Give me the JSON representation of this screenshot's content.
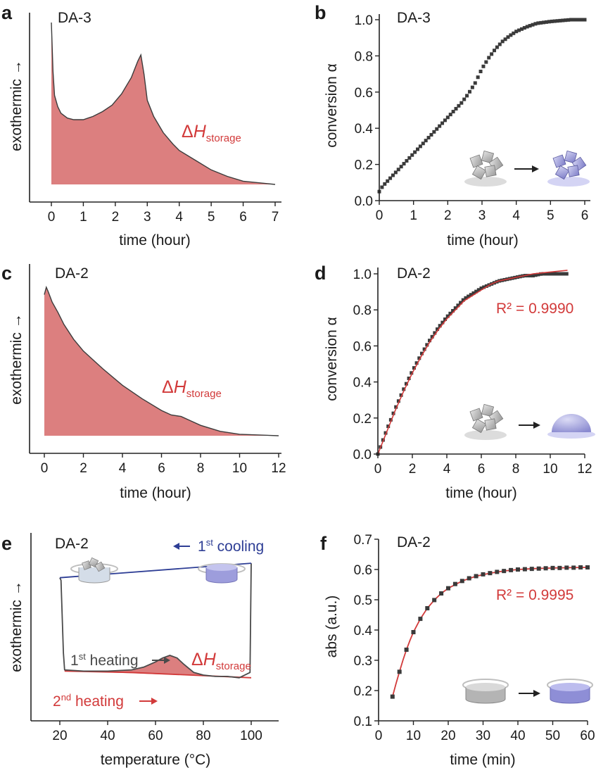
{
  "chart_data": [
    {
      "panel": "a",
      "type": "area",
      "title": "DA-3",
      "xlabel": "time (hour)",
      "ylabel": "exothermic →",
      "xlim": [
        -0.5,
        7
      ],
      "xticks": [
        0,
        1,
        2,
        3,
        4,
        5,
        6,
        7
      ],
      "yticks": [],
      "annotation": "ΔH_storage",
      "series": [
        {
          "x": [
            0,
            0.05,
            0.1,
            0.2,
            0.3,
            0.5,
            0.7,
            1.0,
            1.3,
            1.6,
            1.9,
            2.2,
            2.5,
            2.7,
            2.8,
            2.9,
            3.0,
            3.2,
            3.5,
            3.8,
            4.0,
            4.5,
            5.0,
            5.5,
            6.0,
            6.5,
            7.0
          ],
          "values": [
            1.0,
            0.7,
            0.55,
            0.48,
            0.44,
            0.41,
            0.4,
            0.4,
            0.42,
            0.45,
            0.49,
            0.56,
            0.66,
            0.76,
            0.8,
            0.68,
            0.52,
            0.42,
            0.32,
            0.25,
            0.21,
            0.15,
            0.09,
            0.05,
            0.02,
            0.01,
            0.0
          ]
        }
      ]
    },
    {
      "panel": "b",
      "type": "line",
      "title": "DA-3",
      "xlabel": "time (hour)",
      "ylabel": "conversion α",
      "xlim": [
        0,
        6
      ],
      "ylim": [
        0,
        1.0
      ],
      "xticks": [
        0,
        1,
        2,
        3,
        4,
        5,
        6
      ],
      "yticks": [
        0.0,
        0.2,
        0.4,
        0.6,
        0.8,
        1.0
      ],
      "series": [
        {
          "x": [
            0,
            0.1,
            0.2,
            0.4,
            0.6,
            0.8,
            1.0,
            1.2,
            1.4,
            1.6,
            1.8,
            2.0,
            2.2,
            2.4,
            2.6,
            2.8,
            3.0,
            3.2,
            3.4,
            3.6,
            3.8,
            4.0,
            4.3,
            4.6,
            5.0,
            5.3,
            5.6,
            6.0
          ],
          "values": [
            0.05,
            0.08,
            0.1,
            0.14,
            0.18,
            0.22,
            0.26,
            0.3,
            0.34,
            0.38,
            0.42,
            0.46,
            0.5,
            0.54,
            0.59,
            0.65,
            0.73,
            0.79,
            0.84,
            0.88,
            0.91,
            0.935,
            0.96,
            0.98,
            0.99,
            0.995,
            1.0,
            1.0
          ]
        }
      ]
    },
    {
      "panel": "c",
      "type": "area",
      "title": "DA-2",
      "xlabel": "time (hour)",
      "ylabel": "exothermic →",
      "xlim": [
        -0.5,
        12
      ],
      "xticks": [
        0,
        2,
        4,
        6,
        8,
        10,
        12
      ],
      "yticks": [],
      "annotation": "ΔH_storage",
      "series": [
        {
          "x": [
            0,
            0.1,
            0.2,
            0.4,
            0.7,
            1.0,
            1.5,
            2.0,
            3.0,
            4.0,
            5.0,
            6.0,
            6.5,
            7.0,
            7.5,
            8.0,
            9.0,
            10.0,
            11.0,
            12.0
          ],
          "values": [
            0.95,
            1.0,
            0.97,
            0.9,
            0.83,
            0.75,
            0.65,
            0.57,
            0.45,
            0.34,
            0.25,
            0.17,
            0.14,
            0.13,
            0.1,
            0.07,
            0.03,
            0.01,
            0.005,
            0.0
          ]
        }
      ]
    },
    {
      "panel": "d",
      "type": "line",
      "title": "DA-2",
      "xlabel": "time (hour)",
      "ylabel": "conversion α",
      "xlim": [
        0,
        12
      ],
      "ylim": [
        0,
        1.0
      ],
      "xticks": [
        0,
        2,
        4,
        6,
        8,
        10,
        12
      ],
      "yticks": [
        0.0,
        0.2,
        0.4,
        0.6,
        0.8,
        1.0
      ],
      "annotation": "R² = 0.9990",
      "series": [
        {
          "x": [
            0,
            0.5,
            1,
            1.5,
            2,
            2.5,
            3,
            3.5,
            4,
            4.5,
            5,
            5.5,
            6,
            6.5,
            7,
            7.5,
            8,
            8.5,
            9,
            9.5,
            10,
            10.5,
            11
          ],
          "values": [
            0.0,
            0.13,
            0.25,
            0.36,
            0.46,
            0.55,
            0.63,
            0.7,
            0.76,
            0.81,
            0.86,
            0.89,
            0.92,
            0.94,
            0.96,
            0.97,
            0.98,
            0.99,
            0.99,
            1.0,
            1.0,
            1.0,
            1.0
          ]
        },
        {
          "x": [
            0,
            0.5,
            1,
            1.5,
            2,
            2.5,
            3,
            3.5,
            4,
            4.5,
            5,
            5.5,
            6,
            6.5,
            7,
            7.5,
            8,
            8.5,
            9,
            9.5,
            10,
            10.5,
            11
          ],
          "values": [
            0.0,
            0.12,
            0.24,
            0.35,
            0.45,
            0.54,
            0.62,
            0.69,
            0.75,
            0.8,
            0.85,
            0.88,
            0.91,
            0.94,
            0.96,
            0.97,
            0.98,
            0.99,
            1.0,
            1.005,
            1.01,
            1.015,
            1.02
          ]
        }
      ]
    },
    {
      "panel": "e",
      "type": "line",
      "title": "DA-2",
      "xlabel": "temperature (°C)",
      "ylabel": "exothermic →",
      "xlim": [
        10,
        110
      ],
      "xticks": [
        20,
        40,
        60,
        80,
        100
      ],
      "yticks": [],
      "legend": [
        "1st cooling",
        "1st heating",
        "2nd heating"
      ],
      "annotation": "ΔH_storage",
      "series": [
        {
          "x": [
            100,
            20
          ],
          "values": [
            0.93,
            0.82
          ]
        },
        {
          "x": [
            20,
            20.5,
            21.5,
            22,
            30,
            40,
            50,
            55,
            60,
            63,
            66,
            69,
            72,
            76,
            80,
            85,
            90,
            95,
            99.5,
            100
          ],
          "values": [
            0.82,
            0.8,
            0.25,
            0.12,
            0.11,
            0.11,
            0.12,
            0.14,
            0.18,
            0.21,
            0.23,
            0.21,
            0.16,
            0.1,
            0.08,
            0.07,
            0.07,
            0.06,
            0.1,
            0.93
          ]
        },
        {
          "x": [
            22,
            50,
            100
          ],
          "values": [
            0.11,
            0.1,
            0.06
          ]
        }
      ]
    },
    {
      "panel": "f",
      "type": "line",
      "title": "DA-2",
      "xlabel": "time (min)",
      "ylabel": "abs (a.u.)",
      "xlim": [
        0,
        60
      ],
      "ylim": [
        0.1,
        0.7
      ],
      "xticks": [
        0,
        10,
        20,
        30,
        40,
        50,
        60
      ],
      "yticks": [
        0.1,
        0.2,
        0.3,
        0.4,
        0.5,
        0.6,
        0.7
      ],
      "annotation": "R² = 0.9995",
      "series": [
        {
          "x": [
            4,
            6,
            8,
            10,
            12,
            14,
            16,
            18,
            20,
            22,
            24,
            26,
            28,
            30,
            32,
            34,
            36,
            38,
            40,
            42,
            44,
            46,
            48,
            50,
            52,
            54,
            56,
            58,
            60
          ],
          "values": [
            0.18,
            0.262,
            0.335,
            0.393,
            0.437,
            0.472,
            0.499,
            0.521,
            0.538,
            0.552,
            0.562,
            0.571,
            0.578,
            0.584,
            0.588,
            0.592,
            0.595,
            0.598,
            0.6,
            0.601,
            0.602,
            0.603,
            0.604,
            0.605,
            0.605,
            0.606,
            0.606,
            0.607,
            0.607
          ]
        },
        {
          "x": [
            4,
            5,
            6,
            7,
            8,
            9,
            10,
            12,
            14,
            16,
            18,
            20,
            24,
            28,
            32,
            36,
            40,
            45,
            50,
            55,
            60
          ],
          "values": [
            0.18,
            0.223,
            0.262,
            0.3,
            0.335,
            0.365,
            0.393,
            0.437,
            0.472,
            0.499,
            0.521,
            0.538,
            0.562,
            0.578,
            0.588,
            0.595,
            0.6,
            0.603,
            0.605,
            0.606,
            0.607
          ]
        }
      ]
    }
  ]
}
